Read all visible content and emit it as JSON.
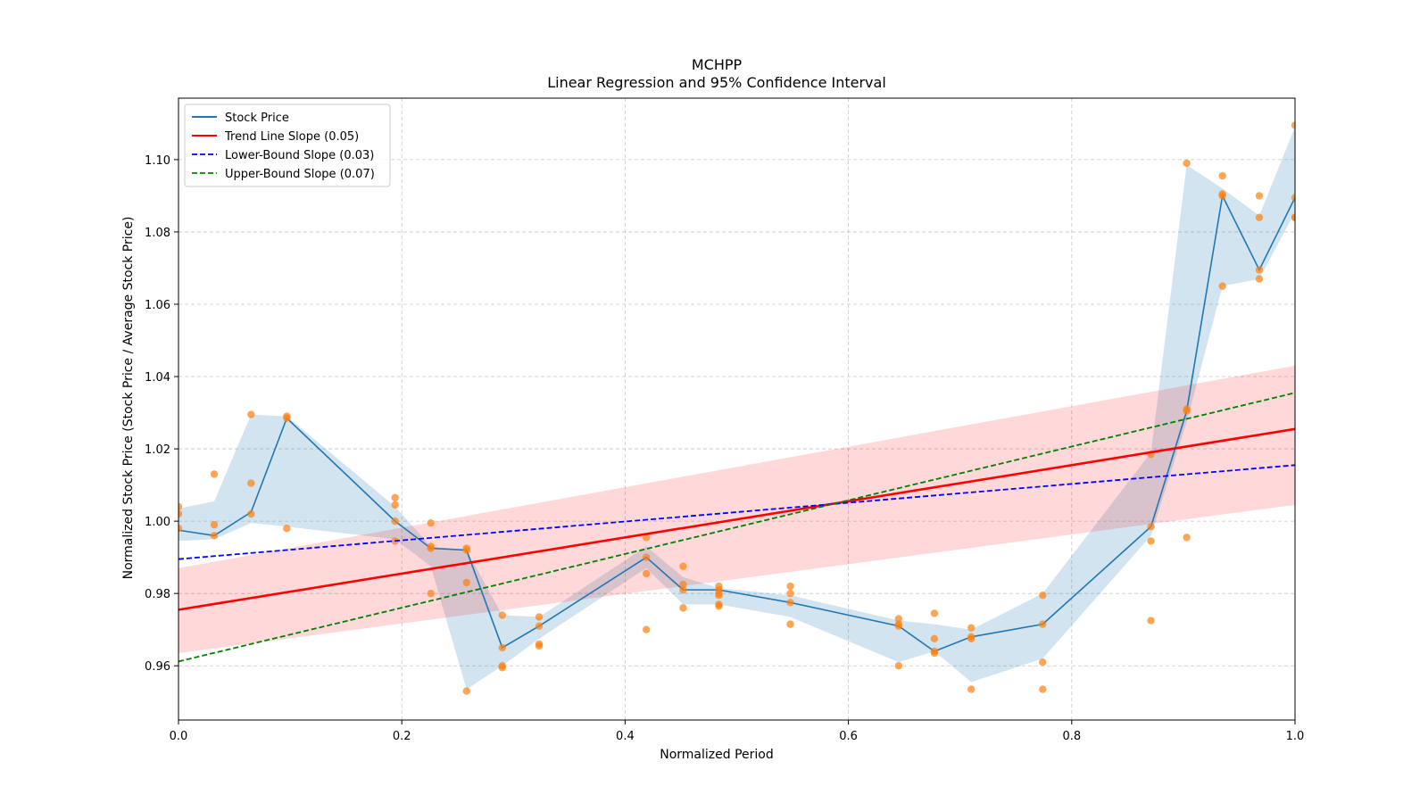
{
  "chart_data": {
    "type": "line",
    "title": "MCHPP",
    "subtitle": "Linear Regression and 95% Confidence Interval",
    "xlabel": "Normalized Period",
    "ylabel": "Normalized Stock Price (Stock Price / Average Stock Price)",
    "xlim": [
      0.0,
      1.0
    ],
    "ylim": [
      0.945,
      1.117
    ],
    "xticks": [
      0.0,
      0.2,
      0.4,
      0.6,
      0.8,
      1.0
    ],
    "xtick_labels": [
      "0.0",
      "0.2",
      "0.4",
      "0.6",
      "0.8",
      "1.0"
    ],
    "yticks": [
      0.96,
      0.98,
      1.0,
      1.02,
      1.04,
      1.06,
      1.08,
      1.1
    ],
    "ytick_labels": [
      "0.96",
      "0.98",
      "1.00",
      "1.02",
      "1.04",
      "1.06",
      "1.08",
      "1.10"
    ],
    "grid": true,
    "legend_position": "top-left",
    "legend": [
      {
        "label": "Stock Price",
        "color": "#1f77b4",
        "style": "solid"
      },
      {
        "label": "Trend Line Slope (0.05)",
        "color": "#ff0000",
        "style": "solid"
      },
      {
        "label": "Lower-Bound Slope (0.03)",
        "color": "#0000ff",
        "style": "dashed"
      },
      {
        "label": "Upper-Bound Slope (0.07)",
        "color": "#008000",
        "style": "dashed"
      }
    ],
    "stock_price": {
      "name": "Stock Price",
      "color": "#1f77b4",
      "band_color": "#1f77b4",
      "x": [
        0.0,
        0.032,
        0.065,
        0.097,
        0.194,
        0.226,
        0.258,
        0.29,
        0.323,
        0.419,
        0.452,
        0.484,
        0.548,
        0.645,
        0.677,
        0.71,
        0.774,
        0.871,
        0.903,
        0.935,
        0.968,
        1.0
      ],
      "y": [
        0.9975,
        0.996,
        1.0025,
        1.0285,
        1.0,
        0.9925,
        0.992,
        0.965,
        0.971,
        0.99,
        0.981,
        0.981,
        0.9775,
        0.971,
        0.964,
        0.968,
        0.9715,
        0.9985,
        1.0305,
        1.09,
        1.0695,
        1.0895
      ],
      "lower": [
        0.9945,
        0.995,
        0.9995,
        0.9985,
        0.995,
        0.9875,
        0.9535,
        0.96,
        0.9675,
        0.987,
        0.977,
        0.977,
        0.9735,
        0.961,
        0.964,
        0.9555,
        0.962,
        0.996,
        1.0275,
        1.065,
        1.067,
        1.0855
      ],
      "upper": [
        1.0035,
        1.0055,
        1.0295,
        1.029,
        1.004,
        0.993,
        0.992,
        0.974,
        0.9735,
        0.993,
        0.9845,
        0.9815,
        0.9795,
        0.9725,
        0.9715,
        0.97,
        0.98,
        1.019,
        1.0985,
        1.092,
        1.0845,
        1.109
      ]
    },
    "scatter": {
      "name": "Observations",
      "color": "#ff7f0e",
      "points": [
        [
          0.0,
          1.004
        ],
        [
          0.0,
          1.002
        ],
        [
          0.0,
          0.998
        ],
        [
          0.032,
          1.013
        ],
        [
          0.032,
          0.999
        ],
        [
          0.032,
          0.996
        ],
        [
          0.065,
          1.0295
        ],
        [
          0.065,
          1.0105
        ],
        [
          0.065,
          1.002
        ],
        [
          0.097,
          1.029
        ],
        [
          0.097,
          1.0285
        ],
        [
          0.097,
          0.998
        ],
        [
          0.194,
          1.0065
        ],
        [
          0.194,
          1.0045
        ],
        [
          0.194,
          1.0
        ],
        [
          0.194,
          0.9945
        ],
        [
          0.226,
          0.9995
        ],
        [
          0.226,
          0.993
        ],
        [
          0.226,
          0.9925
        ],
        [
          0.226,
          0.98
        ],
        [
          0.258,
          0.9925
        ],
        [
          0.258,
          0.992
        ],
        [
          0.258,
          0.983
        ],
        [
          0.258,
          0.953
        ],
        [
          0.29,
          0.974
        ],
        [
          0.29,
          0.965
        ],
        [
          0.29,
          0.96
        ],
        [
          0.29,
          0.9595
        ],
        [
          0.323,
          0.9735
        ],
        [
          0.323,
          0.971
        ],
        [
          0.323,
          0.966
        ],
        [
          0.323,
          0.9655
        ],
        [
          0.419,
          0.9955
        ],
        [
          0.419,
          0.99
        ],
        [
          0.419,
          0.9855
        ],
        [
          0.419,
          0.97
        ],
        [
          0.452,
          0.9875
        ],
        [
          0.452,
          0.9825
        ],
        [
          0.452,
          0.981
        ],
        [
          0.452,
          0.976
        ],
        [
          0.484,
          0.982
        ],
        [
          0.484,
          0.981
        ],
        [
          0.484,
          0.98
        ],
        [
          0.484,
          0.9795
        ],
        [
          0.484,
          0.977
        ],
        [
          0.484,
          0.9765
        ],
        [
          0.548,
          0.982
        ],
        [
          0.548,
          0.98
        ],
        [
          0.548,
          0.9775
        ],
        [
          0.548,
          0.9715
        ],
        [
          0.645,
          0.973
        ],
        [
          0.645,
          0.9715
        ],
        [
          0.645,
          0.971
        ],
        [
          0.645,
          0.96
        ],
        [
          0.677,
          0.9745
        ],
        [
          0.677,
          0.9675
        ],
        [
          0.677,
          0.964
        ],
        [
          0.677,
          0.9635
        ],
        [
          0.71,
          0.9705
        ],
        [
          0.71,
          0.968
        ],
        [
          0.71,
          0.9675
        ],
        [
          0.71,
          0.9535
        ],
        [
          0.774,
          0.9795
        ],
        [
          0.774,
          0.9715
        ],
        [
          0.774,
          0.961
        ],
        [
          0.774,
          0.9535
        ],
        [
          0.871,
          1.0185
        ],
        [
          0.871,
          0.9985
        ],
        [
          0.871,
          0.9945
        ],
        [
          0.871,
          0.9725
        ],
        [
          0.903,
          1.099
        ],
        [
          0.903,
          1.031
        ],
        [
          0.903,
          1.0305
        ],
        [
          0.903,
          0.9955
        ],
        [
          0.935,
          1.0955
        ],
        [
          0.935,
          1.0905
        ],
        [
          0.935,
          1.09
        ],
        [
          0.935,
          1.065
        ],
        [
          0.968,
          1.09
        ],
        [
          0.968,
          1.084
        ],
        [
          0.968,
          1.0695
        ],
        [
          0.968,
          1.067
        ],
        [
          1.0,
          1.1095
        ],
        [
          1.0,
          1.0895
        ],
        [
          1.0,
          1.084
        ],
        [
          1.0,
          1.084
        ]
      ]
    },
    "trend_line": {
      "name": "Trend Line Slope (0.05)",
      "color": "#ff0000",
      "x": [
        0.0,
        1.0
      ],
      "y": [
        0.9755,
        1.0255
      ]
    },
    "trend_band": {
      "color": "#ff0000",
      "x": [
        0.0,
        1.0
      ],
      "lower": [
        0.9635,
        1.0045
      ],
      "upper": [
        0.987,
        1.043
      ]
    },
    "lower_bound_line": {
      "name": "Lower-Bound Slope (0.03)",
      "color": "#0000ff",
      "x": [
        0.0,
        1.0
      ],
      "y": [
        0.9895,
        1.0155
      ]
    },
    "upper_bound_line": {
      "name": "Upper-Bound Slope (0.07)",
      "color": "#008000",
      "x": [
        0.0,
        1.0
      ],
      "y": [
        0.9612,
        1.0355
      ]
    }
  }
}
